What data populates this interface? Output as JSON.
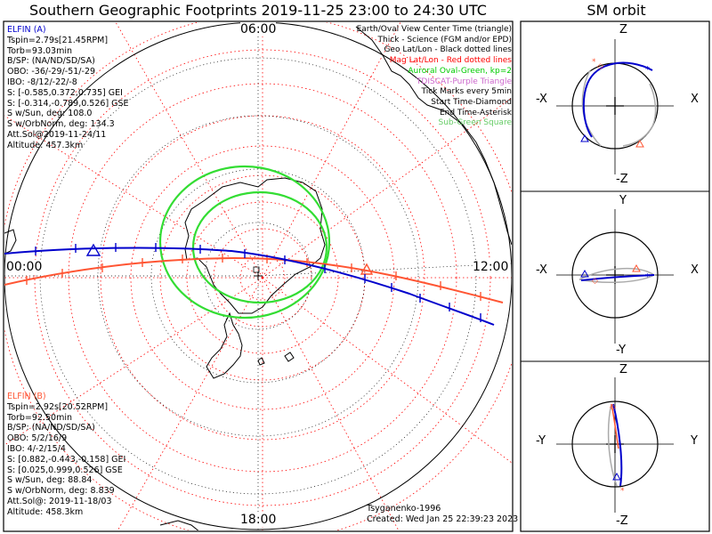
{
  "title": "Southern Geographic Footprints 2019-11-25 23:00 to 24:30 UTC",
  "sm_title": "SM orbit",
  "time_labels": {
    "top": "06:00",
    "left": "00:00",
    "right": "12:00",
    "bottom": "18:00"
  },
  "elfin_a": {
    "name": "ELFIN (A)",
    "color": "#0000cc",
    "lines": [
      "Tspin=2.79s[21.45RPM]",
      "Torb=93.03min",
      "B/SP: (NA/ND/SD/SA)",
      "OBO: -36/-29/-51/-29",
      "IBO: -8/12/-22/-8",
      "S: [-0.585,0.372,0.735] GEI",
      "S: [-0.314,-0.789,0.526] GSE",
      "S w/Sun, deg: 108.0",
      "S w/OrbNorm, deg: 134.3",
      "Att.Sol@2019-11-24/11",
      "Altitude: 457.3km"
    ]
  },
  "elfin_b": {
    "name": "ELFIN (B)",
    "color": "#ff5533",
    "lines": [
      "Tspin=2.92s[20.52RPM]",
      "Torb=92.50min",
      "B/SP: (NA/ND/SD/SA)",
      "OBO: 5/2/16/9",
      "IBO: 4/-2/15/4",
      "S: [0.882,-0.443,-0.158] GEI",
      "S: [0.025,0.999,0.526] GSE",
      "S w/Sun, deg: 88.84",
      "S w/OrbNorm, deg: 8.839",
      "Att.Sol@: 2019-11-18/03",
      "Altitude: 458.3km"
    ]
  },
  "legend": [
    {
      "text": "Earth/Oval View Center Time (triangle)",
      "color": "#000000"
    },
    {
      "text": "Thick - Science (FGM and/or EPD)",
      "color": "#000000"
    },
    {
      "text": "Geo Lat/Lon - Black dotted lines",
      "color": "#000000"
    },
    {
      "text": "Mag Lat/Lon - Red dotted lines",
      "color": "#ff0000"
    },
    {
      "text": "Auroral Oval-Green, kp=2",
      "color": "#00cc00"
    },
    {
      "text": "TDISCAT-Purple Triangle",
      "color": "#cc66cc"
    },
    {
      "text": "Tick Marks every 5min",
      "color": "#000000"
    },
    {
      "text": "Start Time-Diamond",
      "color": "#000000"
    },
    {
      "text": "End Time-Asterisk",
      "color": "#000000"
    },
    {
      "text": "Sub-Green Square",
      "color": "#66cc66"
    }
  ],
  "credit": "Tsyganenko-1996",
  "created": "Created: Wed Jan 25 22:39:23 2023",
  "panels": [
    {
      "name": "xz",
      "top": "Z",
      "bottom": "-Z",
      "left": "-X",
      "right": "X"
    },
    {
      "name": "xy",
      "top": "Y",
      "bottom": "-Y",
      "left": "-X",
      "right": "X"
    },
    {
      "name": "yz",
      "top": "Z",
      "bottom": "-Z",
      "left": "-Y",
      "right": "Y"
    }
  ]
}
